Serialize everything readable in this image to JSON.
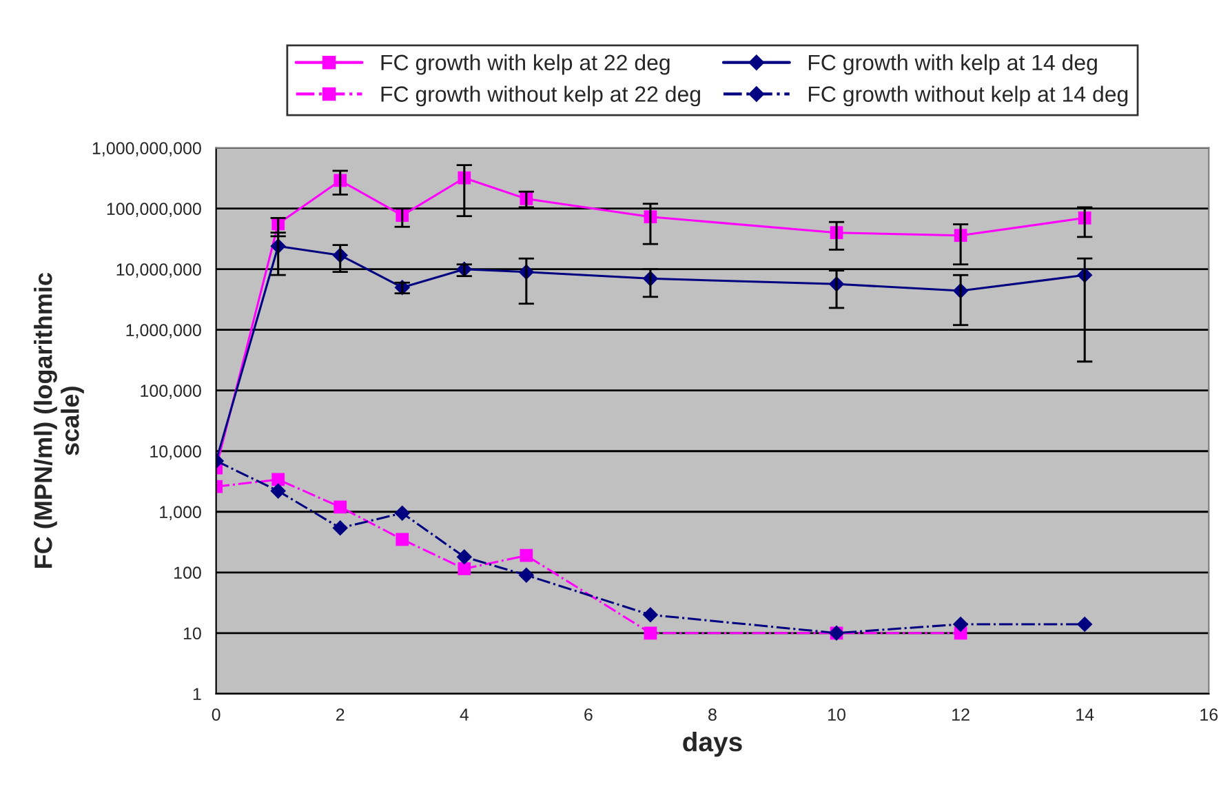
{
  "chart_data": {
    "type": "line",
    "xlabel": "days",
    "ylabel": "FC (MPN/ml) (logarithmic\nscale)",
    "log": "y",
    "grid": "y",
    "legend": "top",
    "xlim": [
      0,
      16
    ],
    "xticks": [
      0,
      2,
      4,
      6,
      8,
      10,
      12,
      14,
      16
    ],
    "ylim": [
      1,
      1000000000
    ],
    "yticks": [
      1,
      10,
      100,
      {
        "value": 1000,
        "label": "1,000"
      },
      {
        "value": 10000,
        "label": "10,000"
      },
      {
        "value": 100000,
        "label": "100,000"
      },
      {
        "value": 1000000,
        "label": "1,000,000"
      },
      {
        "value": 10000000,
        "label": "10,000,000"
      },
      {
        "value": 100000000,
        "label": "100,000,000"
      },
      {
        "value": 1000000000,
        "label": "1,000,000,000"
      }
    ],
    "series": [
      {
        "name": "FC growth with kelp at 22 deg",
        "color": "#ff00ff",
        "marker": "square",
        "line_style": "solid",
        "x": [
          0,
          1,
          2,
          3,
          4,
          5,
          7,
          10,
          12,
          14
        ],
        "values": [
          5300,
          56000000,
          290000000,
          77000000,
          320000000,
          145000000,
          73000000,
          40000000,
          36000000,
          70000000
        ],
        "errors": [
          null,
          [
            35000000,
            70000000
          ],
          [
            170000000,
            420000000
          ],
          [
            50000000,
            100000000
          ],
          [
            75000000,
            520000000
          ],
          [
            105000000,
            190000000
          ],
          [
            26000000,
            120000000
          ],
          [
            21000000,
            60000000
          ],
          [
            12000000,
            55000000
          ],
          [
            34000000,
            105000000
          ]
        ]
      },
      {
        "name": "FC growth with kelp at 14 deg",
        "color": "#000080",
        "marker": "diamond",
        "line_style": "solid",
        "x": [
          0,
          1,
          2,
          3,
          4,
          5,
          7,
          10,
          12,
          14
        ],
        "values": [
          6900,
          24000000,
          17000000,
          5000000,
          10000000,
          9000000,
          7000000,
          5700000,
          4400000,
          8000000
        ],
        "errors": [
          null,
          [
            8000000,
            40000000
          ],
          [
            9000000,
            25000000
          ],
          [
            4000000,
            6000000
          ],
          [
            7700000,
            12000000
          ],
          [
            2700000,
            15000000
          ],
          [
            3500000,
            10000000
          ],
          [
            2300000,
            9500000
          ],
          [
            1200000,
            8000000
          ],
          [
            300000,
            15000000
          ]
        ]
      },
      {
        "name": "FC growth without kelp at 22 deg",
        "color": "#ff00ff",
        "marker": "square",
        "line_style": "dashed",
        "x": [
          0,
          1,
          2,
          3,
          4,
          5,
          7,
          10,
          12
        ],
        "values": [
          2600,
          3400,
          1200,
          350,
          115,
          190,
          10,
          10,
          10
        ]
      },
      {
        "name": "FC growth without kelp at 14 deg",
        "color": "#000080",
        "marker": "diamond",
        "line_style": "dashed",
        "x": [
          0,
          1,
          2,
          3,
          4,
          5,
          7,
          10,
          12,
          14
        ],
        "values": [
          6900,
          2200,
          540,
          950,
          180,
          90,
          20,
          10,
          14,
          14
        ]
      }
    ]
  }
}
